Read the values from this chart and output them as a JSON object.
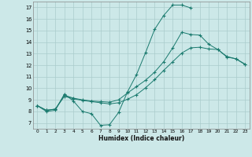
{
  "bg_color": "#cce8e8",
  "grid_color": "#aacccc",
  "line_color": "#1a7a6e",
  "xlabel": "Humidex (Indice chaleur)",
  "xlim": [
    -0.5,
    23.5
  ],
  "ylim": [
    6.5,
    17.5
  ],
  "yticks": [
    7,
    8,
    9,
    10,
    11,
    12,
    13,
    14,
    15,
    16,
    17
  ],
  "xticks": [
    0,
    1,
    2,
    3,
    4,
    5,
    6,
    7,
    8,
    9,
    10,
    11,
    12,
    13,
    14,
    15,
    16,
    17,
    18,
    19,
    20,
    21,
    22,
    23
  ],
  "line1_x": [
    0,
    1,
    2,
    3,
    4,
    5,
    6,
    7,
    8,
    9,
    10,
    11,
    12,
    13,
    14,
    15,
    16,
    17
  ],
  "line1_y": [
    8.5,
    8.0,
    8.1,
    9.5,
    8.9,
    8.0,
    7.8,
    6.8,
    6.85,
    7.9,
    9.7,
    11.2,
    13.1,
    15.1,
    16.3,
    17.2,
    17.2,
    16.95
  ],
  "line2_x": [
    0,
    1,
    2,
    3,
    4,
    5,
    6,
    7,
    8,
    9,
    10,
    11,
    12,
    13,
    14,
    15,
    16,
    17,
    18,
    19,
    20,
    21,
    22,
    23
  ],
  "line2_y": [
    8.5,
    8.1,
    8.2,
    9.4,
    9.15,
    9.0,
    8.9,
    8.85,
    8.8,
    9.0,
    9.6,
    10.15,
    10.7,
    11.4,
    12.3,
    13.5,
    14.85,
    14.65,
    14.6,
    13.8,
    13.35,
    12.7,
    12.55,
    12.1
  ],
  "line3_x": [
    0,
    1,
    2,
    3,
    4,
    5,
    6,
    7,
    8,
    9,
    10,
    11,
    12,
    13,
    14,
    15,
    16,
    17,
    18,
    19,
    20,
    21,
    22,
    23
  ],
  "line3_y": [
    8.5,
    8.1,
    8.2,
    9.3,
    9.1,
    8.95,
    8.85,
    8.75,
    8.65,
    8.75,
    9.05,
    9.45,
    10.05,
    10.75,
    11.55,
    12.3,
    13.05,
    13.5,
    13.55,
    13.4,
    13.35,
    12.75,
    12.55,
    12.05
  ]
}
